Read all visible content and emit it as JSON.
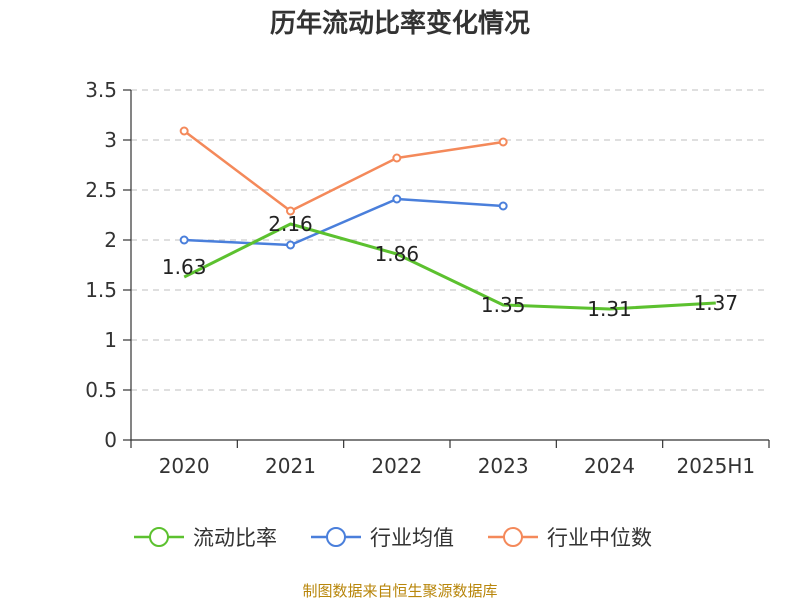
{
  "chart_data": {
    "type": "line",
    "title": "历年流动比率变化情况",
    "categories": [
      "2020",
      "2021",
      "2022",
      "2023",
      "2024",
      "2025H1"
    ],
    "ylim": [
      0,
      3.5
    ],
    "yticks": [
      "0",
      "0.5",
      "1",
      "1.5",
      "2",
      "2.5",
      "3",
      "3.5"
    ],
    "grid": true,
    "legend_position": "bottom",
    "series": [
      {
        "name": "流动比率",
        "color": "#5cc12f",
        "values": [
          1.63,
          2.16,
          1.86,
          1.35,
          1.31,
          1.37
        ],
        "labels": [
          "1.63",
          "2.16",
          "1.86",
          "1.35",
          "1.31",
          "1.37"
        ],
        "show_markers": false
      },
      {
        "name": "行业均值",
        "color": "#4a7fdb",
        "values": [
          2.0,
          1.95,
          2.41,
          2.34,
          null,
          null
        ],
        "show_markers": true
      },
      {
        "name": "行业中位数",
        "color": "#f4895a",
        "values": [
          3.09,
          2.29,
          2.82,
          2.98,
          null,
          null
        ],
        "show_markers": true
      }
    ]
  },
  "footer": {
    "source": "制图数据来自恒生聚源数据库"
  }
}
